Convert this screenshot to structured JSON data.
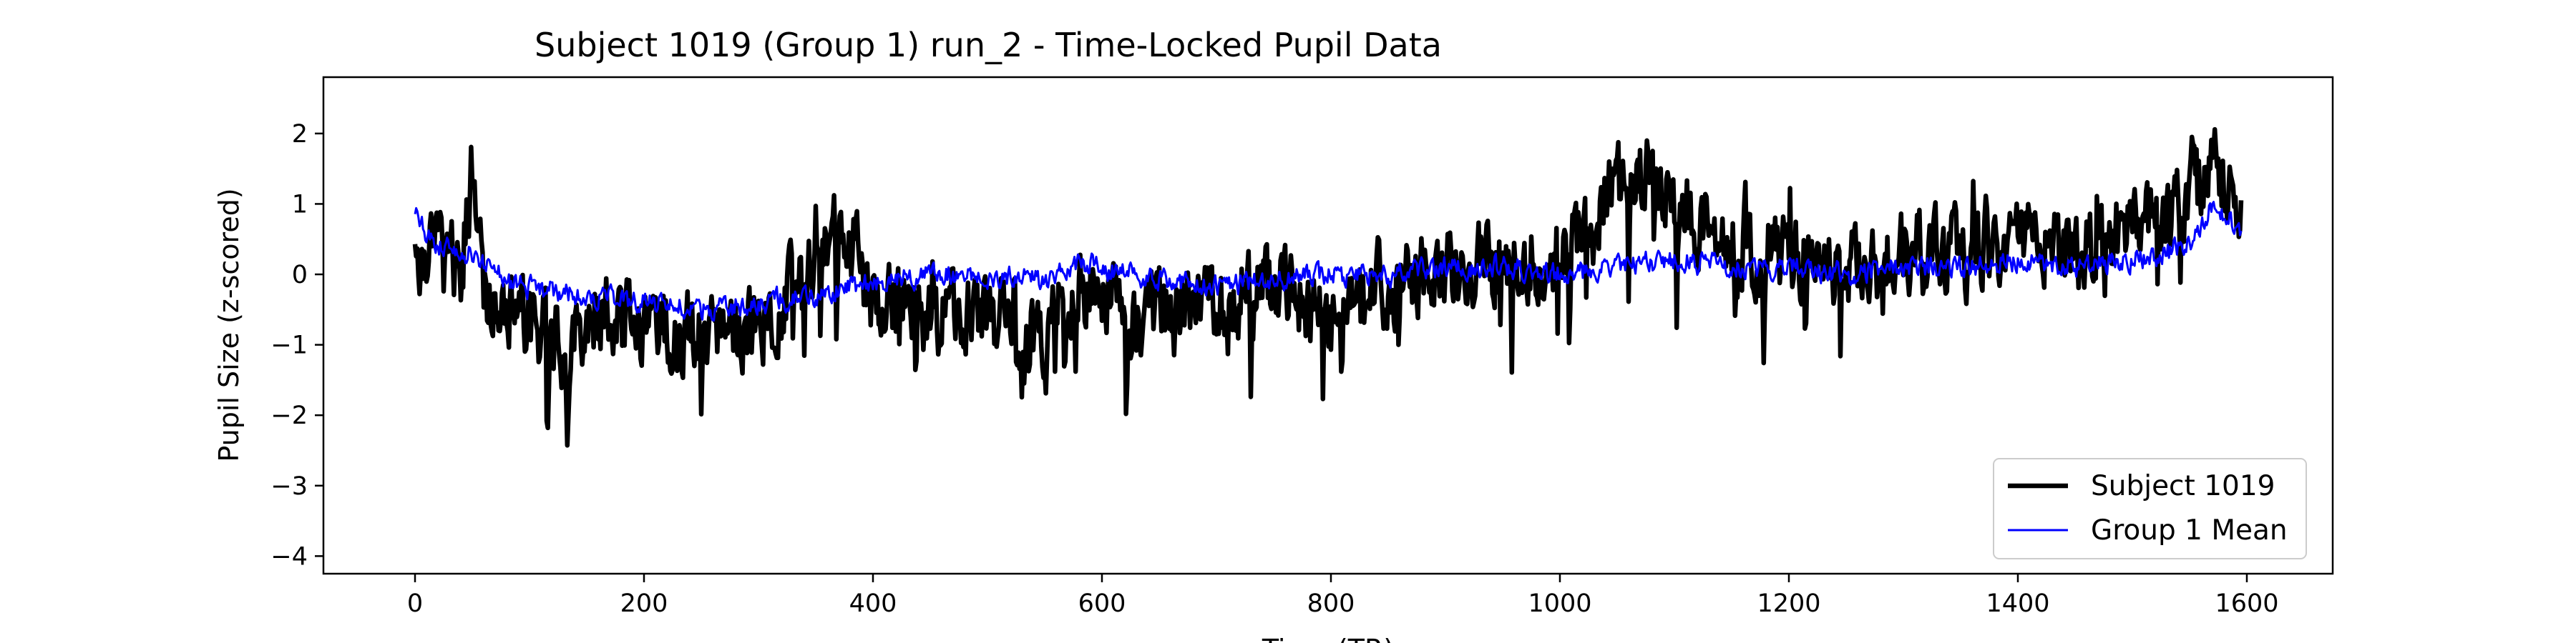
{
  "chart_data": {
    "type": "line",
    "title": "Subject 1019 (Group 1) run_2 - Time-Locked Pupil Data",
    "xlabel": "Time (TR)",
    "ylabel": "Pupil Size (z-scored)",
    "xlim": [
      -80,
      1675
    ],
    "ylim": [
      -4.25,
      2.8
    ],
    "xticks": [
      0,
      200,
      400,
      600,
      800,
      1000,
      1200,
      1400,
      1600
    ],
    "xtick_labels": [
      "0",
      "200",
      "400",
      "600",
      "800",
      "1000",
      "1200",
      "1400",
      "1600"
    ],
    "yticks": [
      -4,
      -3,
      -2,
      -1,
      0,
      1,
      2
    ],
    "ytick_labels": [
      "−4",
      "−3",
      "−2",
      "−1",
      "0",
      "1",
      "2"
    ],
    "grid": false,
    "legend_position": "lower-right",
    "n_points": 1596,
    "series": [
      {
        "name": "Subject 1019",
        "color": "#000000",
        "style": "thick",
        "x": [
          0,
          20,
          40,
          50,
          60,
          80,
          100,
          130,
          150,
          180,
          220,
          260,
          300,
          340,
          360,
          380,
          400,
          450,
          500,
          540,
          550,
          560,
          600,
          650,
          700,
          750,
          800,
          850,
          900,
          950,
          1000,
          1020,
          1050,
          1080,
          1100,
          1150,
          1200,
          1250,
          1300,
          1350,
          1400,
          1450,
          1500,
          1550,
          1570,
          1595
        ],
        "values": [
          0.3,
          0.5,
          0.1,
          1.5,
          -0.5,
          -0.3,
          -0.8,
          -1.0,
          -0.6,
          -0.4,
          -0.7,
          -1.0,
          -0.6,
          -0.2,
          0.5,
          0.6,
          -0.4,
          -0.5,
          -0.6,
          -0.8,
          -1.2,
          -0.4,
          -0.3,
          -0.4,
          -0.5,
          -0.2,
          -0.6,
          -0.2,
          0.1,
          0.2,
          0.4,
          0.5,
          1.3,
          1.4,
          0.9,
          0.5,
          0.3,
          0.1,
          0.3,
          0.3,
          0.4,
          0.3,
          0.6,
          1.0,
          1.6,
          0.7
        ],
        "spread": 0.9
      },
      {
        "name": "Group 1 Mean",
        "color": "#0000ff",
        "style": "thin",
        "x": [
          0,
          20,
          50,
          80,
          100,
          150,
          200,
          250,
          300,
          350,
          400,
          450,
          500,
          550,
          580,
          600,
          650,
          700,
          750,
          800,
          850,
          900,
          950,
          1000,
          1050,
          1100,
          1150,
          1200,
          1250,
          1300,
          1350,
          1400,
          1450,
          1500,
          1550,
          1570,
          1595
        ],
        "values": [
          0.8,
          0.4,
          0.3,
          -0.1,
          -0.2,
          -0.3,
          -0.4,
          -0.5,
          -0.4,
          -0.3,
          -0.1,
          0.0,
          0.0,
          -0.1,
          0.2,
          0.1,
          -0.1,
          -0.2,
          -0.1,
          0.0,
          0.0,
          0.1,
          0.1,
          0.0,
          0.1,
          0.2,
          0.1,
          0.1,
          0.0,
          0.1,
          0.1,
          0.2,
          0.1,
          0.2,
          0.4,
          1.0,
          0.6
        ],
        "spread": 0.25
      }
    ]
  }
}
